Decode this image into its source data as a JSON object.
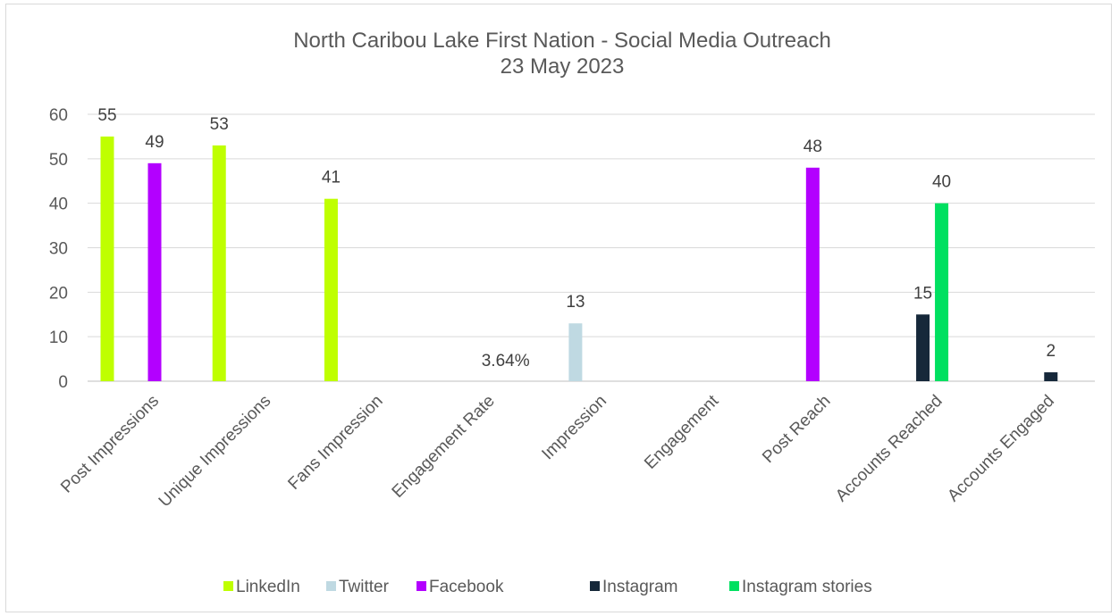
{
  "chart_data": {
    "type": "bar",
    "title": "North Caribou Lake First Nation - Social Media Outreach",
    "subtitle": "23 May 2023",
    "categories": [
      "Post Impressions",
      "Unique Impressions",
      "Fans Impression",
      "Engagement Rate",
      "Impression",
      "Engagement",
      "Post Reach",
      "Accounts Reached",
      "Accounts Engaged"
    ],
    "series": [
      {
        "name": "LinkedIn",
        "color": "#bfff00",
        "values": [
          55,
          53,
          41,
          3.64,
          null,
          null,
          null,
          null,
          null
        ]
      },
      {
        "name": "Twitter",
        "color": "#bfd9e2",
        "values": [
          null,
          null,
          null,
          null,
          13,
          null,
          null,
          null,
          null
        ]
      },
      {
        "name": "Facebook",
        "color": "#b300ff",
        "values": [
          49,
          null,
          null,
          null,
          null,
          null,
          48,
          null,
          null
        ]
      },
      {
        "name": "Instagram",
        "color": "#16283a",
        "values": [
          null,
          null,
          null,
          null,
          null,
          null,
          null,
          15,
          2
        ]
      },
      {
        "name": "Instagram stories",
        "color": "#00e060",
        "values": [
          null,
          null,
          null,
          null,
          null,
          null,
          null,
          40,
          null
        ]
      }
    ],
    "data_labels": [
      "55",
      "49",
      "53",
      "41",
      "3.64%",
      "13",
      "48",
      "15",
      "40",
      "2"
    ],
    "ylim": [
      0,
      60
    ],
    "yticks": [
      "0",
      "10",
      "20",
      "30",
      "40",
      "50",
      "60"
    ],
    "grid": true,
    "legend": "bottom"
  }
}
